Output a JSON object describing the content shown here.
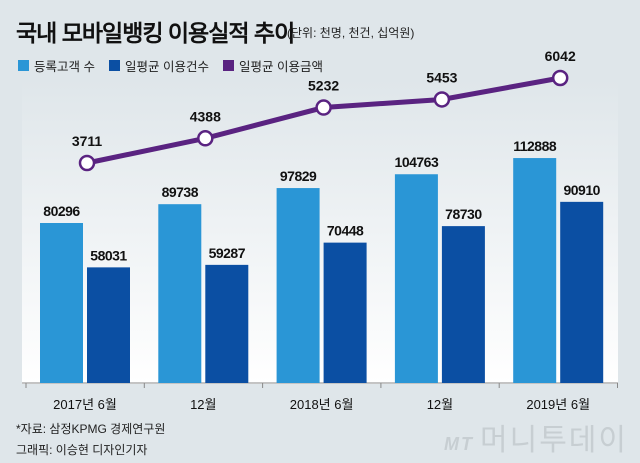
{
  "title": "국내 모바일뱅킹 이용실적 추이",
  "unit": "(단위: 천명, 천건, 십억원)",
  "chart_data": {
    "type": "bar",
    "title": "국내 모바일뱅킹 이용실적 추이",
    "categories": [
      "2017년 6월",
      "12월",
      "2018년 6월",
      "12월",
      "2019년 6월"
    ],
    "series": [
      {
        "name": "등록고객 수",
        "type": "bar",
        "color": "#2a96d6",
        "values": [
          80296,
          89738,
          97829,
          104763,
          112888
        ]
      },
      {
        "name": "일평균 이용건수",
        "type": "bar",
        "color": "#0b4fa3",
        "values": [
          58031,
          59287,
          70448,
          78730,
          90910
        ]
      },
      {
        "name": "일평균 이용금액",
        "type": "line",
        "color": "#5a2381",
        "values": [
          3711,
          4388,
          5232,
          5453,
          6042
        ]
      }
    ],
    "legend_position": "top-left",
    "grid": false
  },
  "footer": {
    "source": "*자료: 삼정KPMG 경제연구원",
    "credit": "그래픽: 이승현 디자인기자",
    "logo": "MT 머니투데이"
  }
}
